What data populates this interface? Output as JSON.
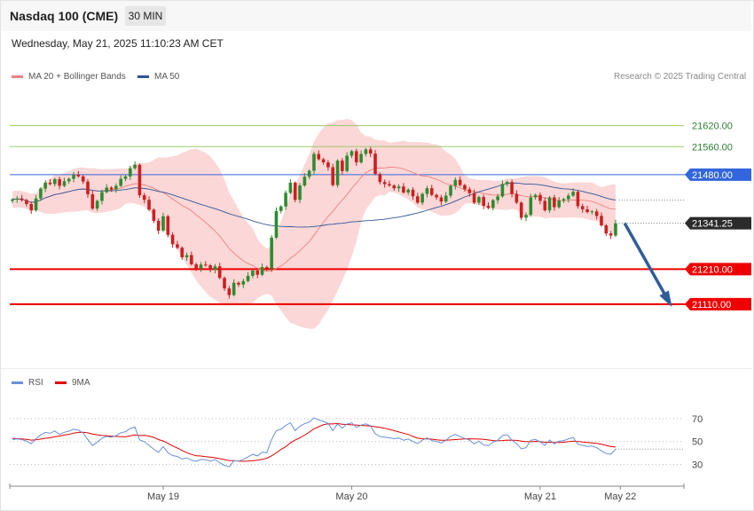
{
  "header": {
    "title": "Nasdaq 100 (CME)",
    "timeframe": "30 MIN",
    "datetime": "Wednesday, May 21, 2025 11:10:23 AM CET"
  },
  "legend_main": [
    {
      "label": "MA 20 + Bollinger Bands",
      "color": "#f08080"
    },
    {
      "label": "MA 50",
      "color": "#2f5597"
    }
  ],
  "legend_rsi": [
    {
      "label": "RSI",
      "color": "#6a8fd8"
    },
    {
      "label": "9MA",
      "color": "#e00000"
    }
  ],
  "credit": "Research © 2025 Trading Central",
  "colors": {
    "up": "#2e8b2e",
    "down": "#cc1f1f",
    "band_fill": "#f9c9c9",
    "resistance": "#9bc96b",
    "support": "#ee0000",
    "blue_level": "#3366dd",
    "arrow": "#2f5d9a"
  },
  "chart_data": [
    {
      "type": "candlestick",
      "price_range": [
        20950,
        21700
      ],
      "time_range": [
        0,
        161
      ],
      "x_ticks": [
        {
          "label": "May 19",
          "t": 32
        },
        {
          "label": "May 20",
          "t": 72
        },
        {
          "label": "May 21",
          "t": 112
        },
        {
          "label": "May 22",
          "t": 129
        }
      ],
      "levels": [
        {
          "value": 21620,
          "label": "21620.00",
          "kind": "resistance"
        },
        {
          "value": 21560,
          "label": "21560.00",
          "kind": "resistance"
        },
        {
          "value": 21480,
          "label": "21480.00",
          "kind": "blue"
        },
        {
          "value": 21341.25,
          "label": "21341.25",
          "kind": "last"
        },
        {
          "value": 21210,
          "label": "21210.00",
          "kind": "support"
        },
        {
          "value": 21110,
          "label": "21110.00",
          "kind": "support"
        }
      ],
      "forecast_arrow": {
        "from": {
          "t": 129,
          "price": 21341
        },
        "to": {
          "t": 141,
          "price": 21113
        }
      },
      "closes": [
        21409,
        21412,
        21407,
        21396,
        21378,
        21412,
        21440,
        21457,
        21453,
        21467,
        21448,
        21461,
        21468,
        21480,
        21475,
        21460,
        21424,
        21383,
        21405,
        21430,
        21443,
        21438,
        21448,
        21468,
        21475,
        21498,
        21508,
        21421,
        21408,
        21380,
        21348,
        21320,
        21361,
        21308,
        21281,
        21271,
        21244,
        21250,
        21224,
        21212,
        21223,
        21221,
        21208,
        21218,
        21185,
        21155,
        21136,
        21171,
        21166,
        21176,
        21191,
        21206,
        21194,
        21216,
        21212,
        21300,
        21376,
        21389,
        21428,
        21457,
        21408,
        21449,
        21474,
        21491,
        21539,
        21524,
        21515,
        21501,
        21450,
        21520,
        21490,
        21534,
        21547,
        21515,
        21539,
        21552,
        21540,
        21482,
        21459,
        21453,
        21449,
        21441,
        21446,
        21429,
        21437,
        21418,
        21400,
        21425,
        21441,
        21422,
        21415,
        21403,
        21420,
        21448,
        21465,
        21450,
        21438,
        21427,
        21400,
        21416,
        21391,
        21385,
        21407,
        21418,
        21453,
        21459,
        21425,
        21400,
        21357,
        21365,
        21415,
        21422,
        21405,
        21378,
        21415,
        21387,
        21406,
        21410,
        21420,
        21431,
        21390,
        21381,
        21373,
        21375,
        21362,
        21335,
        21312,
        21306,
        21341
      ]
    },
    {
      "type": "line",
      "name": "RSI",
      "y_range": [
        15,
        90
      ],
      "y_ticks": [
        70,
        50,
        30
      ],
      "time_range": [
        0,
        161
      ],
      "series": [
        {
          "name": "RSI",
          "values": [
            51.8,
            52.3,
            51.7,
            50.4,
            48.2,
            52.5,
            55.8,
            58,
            57.2,
            59.2,
            56.2,
            58.1,
            59.1,
            60.8,
            59.9,
            57.4,
            51.9,
            46.5,
            49.6,
            52.9,
            54.5,
            53.8,
            55.1,
            57.7,
            58.6,
            61.4,
            62.6,
            51.4,
            49.9,
            46.7,
            43.3,
            40.6,
            45.6,
            40.2,
            37.8,
            37,
            34.8,
            35.8,
            33.7,
            32.8,
            34.4,
            34.1,
            32.9,
            34.4,
            31.5,
            29.2,
            28,
            33.3,
            32.9,
            34.5,
            36.7,
            38.9,
            37.5,
            40.7,
            40.3,
            51.7,
            59.5,
            60.7,
            64.1,
            66.4,
            59.5,
            63.4,
            65.6,
            67,
            70.7,
            68.8,
            67.6,
            65.8,
            59.5,
            65.3,
            61.7,
            65.3,
            66.3,
            62.3,
            64.3,
            65.4,
            63.8,
            56.8,
            54.4,
            53.8,
            53.3,
            52.5,
            53.1,
            51.2,
            52.2,
            50.1,
            48.2,
            51.3,
            53.2,
            50.9,
            50.1,
            48.8,
            51.1,
            54.5,
            56.4,
            54.3,
            52.7,
            51.3,
            47.9,
            50.3,
            47.1,
            46.4,
            49.5,
            51,
            55.3,
            56,
            51.2,
            48.2,
            43.6,
            44.7,
            51.1,
            51.9,
            49.7,
            46.6,
            51.4,
            47.9,
            50.4,
            50.9,
            52.3,
            53.6,
            47.7,
            46.7,
            45.8,
            46.1,
            44.7,
            41.9,
            39.6,
            39,
            43.4
          ]
        },
        {
          "name": "9MA",
          "values": [
            52.8,
            52.5,
            52.3,
            51.9,
            51.3,
            51.6,
            52.2,
            52.9,
            53.3,
            54.2,
            54.8,
            55.7,
            56.3,
            57.4,
            58,
            58.1,
            57.6,
            56.6,
            55.9,
            55.3,
            55.1,
            54.7,
            54.5,
            54.2,
            54.2,
            54.9,
            55.8,
            55.3,
            55.4,
            54.8,
            53.6,
            51.7,
            50.5,
            48.5,
            46.2,
            44.3,
            42.3,
            40.3,
            38.8,
            37.6,
            37.4,
            36.9,
            36.5,
            35.9,
            35.1,
            34.3,
            33.5,
            33.4,
            32.9,
            32.8,
            33,
            33.4,
            33.8,
            34.5,
            35.5,
            37.6,
            40.2,
            43.2,
            45.5,
            48.9,
            51.3,
            53.3,
            55.6,
            58.3,
            61.1,
            62.9,
            64.7,
            65.5,
            65.3,
            65.7,
            65.1,
            64.9,
            64.6,
            64.4,
            64,
            63.8,
            63.5,
            62.9,
            62.4,
            61.6,
            60.6,
            59.5,
            58.4,
            57.3,
            56.2,
            54.5,
            53,
            52.5,
            52.3,
            52.1,
            51.5,
            51.2,
            51.1,
            51.4,
            51.7,
            52,
            52.3,
            52.4,
            52.3,
            52.2,
            51.9,
            51.4,
            50.9,
            50.7,
            50.9,
            51.3,
            51.2,
            51,
            50.4,
            49.9,
            49.9,
            50.2,
            49.9,
            49.4,
            49.4,
            49.2,
            49.2,
            49.5,
            49.9,
            50.4,
            50.1,
            49.6,
            49.2,
            48.9,
            48.5,
            47.6,
            46.6,
            45.6,
            45.2
          ]
        }
      ]
    }
  ]
}
